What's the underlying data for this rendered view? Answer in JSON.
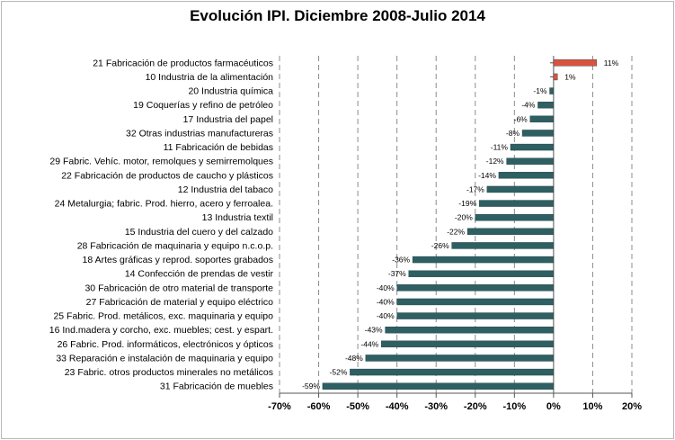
{
  "chart_data": {
    "type": "bar",
    "orientation": "horizontal",
    "title": "Evolución IPI. Diciembre 2008-Julio 2014",
    "xlim": [
      -70,
      20
    ],
    "xticks": [
      "-70%",
      "-60%",
      "-50%",
      "-40%",
      "-30%",
      "-20%",
      "-10%",
      "0%",
      "10%",
      "20%"
    ],
    "grid": "vertical dashed",
    "legend": "none",
    "categories": [
      "21 Fabricación de productos farmacéuticos",
      "10 Industria de la alimentación",
      "20 Industria química",
      "19 Coquerías y refino de petróleo",
      "17 Industria del papel",
      "32 Otras industrias manufactureras",
      "11 Fabricación de bebidas",
      "29 Fabric. Vehíc. motor, remolques y semirremolques",
      "22 Fabricación de productos de caucho y plásticos",
      "12 Industria del tabaco",
      "24 Metalurgia; fabric. Prod. hierro, acero y ferroalea.",
      "13 Industria textil",
      "15 Industria del cuero y del calzado",
      "28 Fabricación de maquinaria y equipo n.c.o.p.",
      "18 Artes gráficas y reprod. soportes grabados",
      "14 Confección de prendas de vestir",
      "30 Fabricación de otro material de transporte",
      "27 Fabricación de material y equipo eléctrico",
      "25 Fabric. Prod. metálicos, exc. maquinaria y equipo",
      "16 Ind.madera y corcho, exc. muebles; cest. y espart.",
      "26 Fabric. Prod. informáticos, electrónicos y ópticos",
      "33 Reparación e instalación de maquinaria y equipo",
      "23 Fabric. otros productos minerales no metálicos",
      "31 Fabricación de muebles"
    ],
    "values": [
      11,
      1,
      -1,
      -4,
      -6,
      -8,
      -11,
      -12,
      -14,
      -17,
      -19,
      -20,
      -22,
      -26,
      -36,
      -37,
      -40,
      -40,
      -40,
      -43,
      -44,
      -48,
      -52,
      -59
    ],
    "value_labels": [
      "11%",
      "1%",
      "-1%",
      "-4%",
      "-6%",
      "-8%",
      "-11%",
      "-12%",
      "-14%",
      "-17%",
      "-19%",
      "-20%",
      "-22%",
      "-26%",
      "-36%",
      "-37%",
      "-40%",
      "-40%",
      "-40%",
      "-43%",
      "-44%",
      "-48%",
      "-52%",
      "-59%"
    ],
    "colors": {
      "negative": "#2e5f62",
      "positive": "#d9533f",
      "grid": "#8c8c8c",
      "axis": "#555555"
    }
  }
}
